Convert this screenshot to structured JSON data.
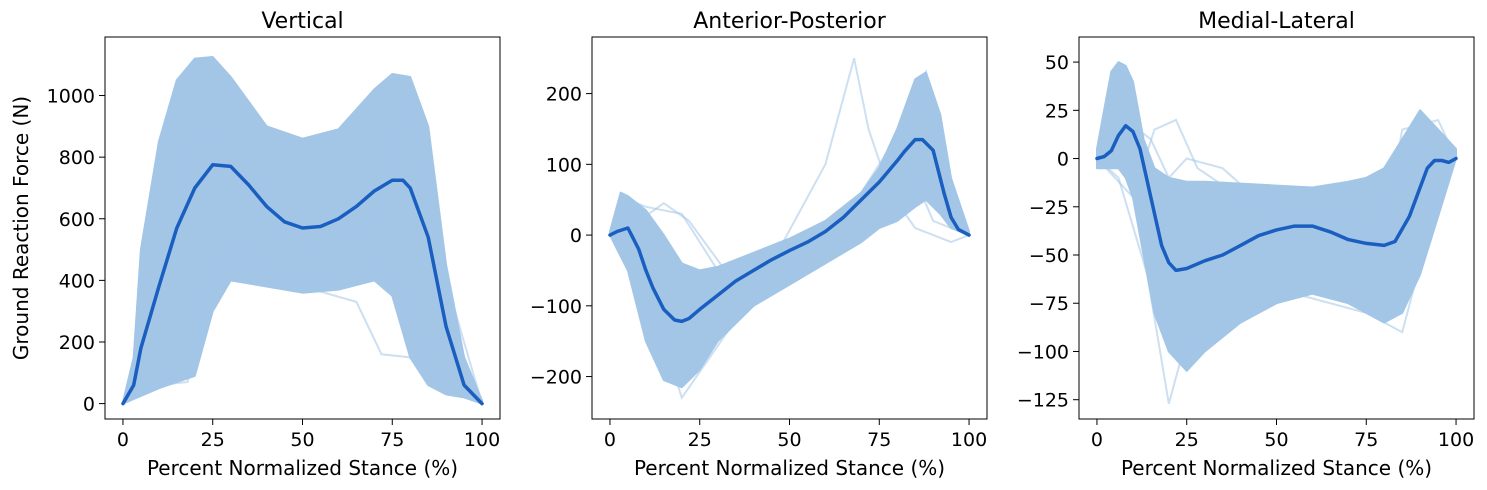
{
  "colors": {
    "band": "#a3c6e7",
    "mean": "#1a5fbf",
    "axis": "#000000"
  },
  "chart_data": [
    {
      "type": "line",
      "title": "Vertical",
      "xlabel": "Percent Normalized Stance (%)",
      "ylabel": "Ground Reaction Force (N)",
      "xlim": [
        -5,
        105
      ],
      "ylim": [
        -50,
        1190
      ],
      "xticks": [
        0,
        25,
        50,
        75,
        100
      ],
      "yticks": [
        0,
        200,
        400,
        600,
        800,
        1000
      ],
      "ytick_labels": [
        "0",
        "200",
        "400",
        "600",
        "800",
        "1000"
      ],
      "x": [
        0,
        3,
        5,
        10,
        15,
        20,
        25,
        30,
        40,
        50,
        60,
        70,
        75,
        80,
        85,
        90,
        95,
        100
      ],
      "band_upper": [
        5,
        150,
        500,
        850,
        1050,
        1120,
        1125,
        1060,
        900,
        860,
        890,
        1020,
        1070,
        1060,
        900,
        450,
        150,
        10
      ],
      "band_lower": [
        0,
        15,
        25,
        50,
        70,
        90,
        300,
        400,
        380,
        360,
        370,
        400,
        350,
        150,
        60,
        30,
        20,
        0
      ],
      "faint_lines": [
        {
          "x": [
            0,
            10,
            18,
            22,
            28,
            45,
            75,
            88,
            100
          ],
          "y": [
            0,
            60,
            70,
            300,
            450,
            420,
            430,
            80,
            5
          ]
        },
        {
          "x": [
            0,
            12,
            20,
            24,
            30,
            50,
            65,
            72,
            80,
            90,
            100
          ],
          "y": [
            0,
            90,
            100,
            400,
            520,
            380,
            330,
            160,
            150,
            70,
            0
          ]
        },
        {
          "x": [
            0,
            8,
            15,
            20,
            30,
            50,
            70,
            80,
            90,
            100
          ],
          "y": [
            0,
            300,
            600,
            900,
            850,
            500,
            600,
            1000,
            400,
            0
          ]
        }
      ],
      "series": [
        {
          "name": "",
          "x": [
            0,
            3,
            5,
            10,
            15,
            20,
            25,
            30,
            35,
            40,
            45,
            50,
            55,
            60,
            65,
            70,
            75,
            78,
            80,
            85,
            90,
            95,
            100
          ],
          "values": [
            0,
            60,
            180,
            380,
            570,
            700,
            775,
            770,
            710,
            640,
            590,
            570,
            575,
            600,
            640,
            690,
            725,
            725,
            700,
            540,
            250,
            60,
            0
          ]
        }
      ]
    },
    {
      "type": "line",
      "title": "Anterior-Posterior",
      "xlabel": "Percent Normalized Stance (%)",
      "ylabel": "",
      "xlim": [
        -5,
        105
      ],
      "ylim": [
        -260,
        280
      ],
      "xticks": [
        0,
        25,
        50,
        75,
        100
      ],
      "yticks": [
        -200,
        -100,
        0,
        100,
        200
      ],
      "ytick_labels": [
        "−200",
        "−100",
        "0",
        "100",
        "200"
      ],
      "x": [
        0,
        3,
        5,
        10,
        15,
        20,
        25,
        30,
        40,
        50,
        60,
        70,
        75,
        80,
        85,
        88,
        92,
        95,
        100
      ],
      "band_upper": [
        5,
        60,
        55,
        35,
        0,
        -40,
        -50,
        -45,
        -25,
        -5,
        20,
        60,
        95,
        150,
        220,
        230,
        170,
        80,
        5
      ],
      "band_lower": [
        0,
        -30,
        -50,
        -150,
        -205,
        -215,
        -190,
        -150,
        -100,
        -70,
        -40,
        -10,
        10,
        20,
        40,
        50,
        30,
        10,
        0
      ],
      "faint_lines": [
        {
          "x": [
            0,
            5,
            10,
            20,
            30,
            45,
            60,
            68,
            72,
            78,
            85,
            95,
            100
          ],
          "y": [
            0,
            50,
            40,
            30,
            -50,
            -40,
            100,
            250,
            150,
            60,
            10,
            -10,
            0
          ]
        },
        {
          "x": [
            0,
            5,
            12,
            20,
            35,
            50,
            65,
            80,
            88,
            95,
            100
          ],
          "y": [
            0,
            30,
            -100,
            -230,
            -120,
            -60,
            30,
            120,
            230,
            50,
            0
          ]
        },
        {
          "x": [
            0,
            8,
            15,
            22,
            35,
            55,
            70,
            80,
            90,
            100
          ],
          "y": [
            0,
            20,
            45,
            20,
            -70,
            -20,
            60,
            140,
            20,
            0
          ]
        }
      ],
      "series": [
        {
          "name": "",
          "x": [
            0,
            2,
            5,
            8,
            10,
            12,
            15,
            18,
            20,
            22,
            25,
            30,
            35,
            40,
            45,
            50,
            55,
            60,
            65,
            70,
            75,
            80,
            82,
            85,
            87,
            90,
            93,
            95,
            97,
            100
          ],
          "values": [
            0,
            5,
            10,
            -20,
            -50,
            -75,
            -105,
            -120,
            -122,
            -118,
            -105,
            -85,
            -65,
            -50,
            -35,
            -22,
            -10,
            5,
            25,
            50,
            75,
            105,
            118,
            135,
            135,
            120,
            60,
            25,
            8,
            0
          ]
        }
      ]
    },
    {
      "type": "line",
      "title": "Medial-Lateral",
      "xlabel": "Percent Normalized Stance (%)",
      "ylabel": "",
      "xlim": [
        -5,
        105
      ],
      "ylim": [
        -135,
        63
      ],
      "xticks": [
        0,
        25,
        50,
        75,
        100
      ],
      "yticks": [
        -125,
        -100,
        -75,
        -50,
        -25,
        0,
        25,
        50
      ],
      "ytick_labels": [
        "−125",
        "−100",
        "−75",
        "−50",
        "−25",
        "0",
        "25",
        "50"
      ],
      "x": [
        0,
        2,
        4,
        6,
        8,
        10,
        13,
        16,
        20,
        25,
        30,
        40,
        50,
        60,
        70,
        75,
        80,
        85,
        90,
        95,
        100
      ],
      "band_upper": [
        5,
        25,
        45,
        50,
        48,
        40,
        10,
        -5,
        -10,
        -12,
        -12,
        -13,
        -14,
        -15,
        -12,
        -10,
        -5,
        10,
        25,
        15,
        5
      ],
      "band_lower": [
        -5,
        -5,
        -5,
        -5,
        -10,
        -20,
        -50,
        -80,
        -100,
        -110,
        -100,
        -85,
        -75,
        -70,
        -75,
        -80,
        -85,
        -80,
        -60,
        -30,
        0
      ],
      "faint_lines": [
        {
          "x": [
            0,
            8,
            15,
            20,
            25,
            35,
            50,
            70,
            80,
            85,
            95,
            100
          ],
          "y": [
            0,
            20,
            10,
            -10,
            0,
            -5,
            -30,
            -35,
            -40,
            15,
            20,
            0
          ]
        },
        {
          "x": [
            0,
            6,
            14,
            20,
            24,
            35,
            55,
            75,
            85,
            95,
            100
          ],
          "y": [
            0,
            -10,
            -60,
            -127,
            -100,
            -90,
            -70,
            -80,
            -90,
            -20,
            0
          ]
        },
        {
          "x": [
            0,
            10,
            16,
            22,
            28,
            40,
            60,
            78,
            88,
            100
          ],
          "y": [
            0,
            -20,
            15,
            20,
            -5,
            -20,
            -30,
            -35,
            5,
            0
          ]
        }
      ],
      "series": [
        {
          "name": "",
          "x": [
            0,
            2,
            4,
            6,
            8,
            10,
            12,
            15,
            18,
            20,
            22,
            25,
            30,
            35,
            40,
            45,
            50,
            55,
            60,
            65,
            70,
            75,
            80,
            83,
            87,
            90,
            92,
            94,
            96,
            98,
            100
          ],
          "values": [
            0,
            1,
            4,
            12,
            17,
            14,
            5,
            -20,
            -45,
            -54,
            -58,
            -57,
            -53,
            -50,
            -45,
            -40,
            -37,
            -35,
            -35,
            -38,
            -42,
            -44,
            -45,
            -43,
            -30,
            -15,
            -5,
            -1,
            -1,
            -2,
            0
          ]
        }
      ]
    }
  ]
}
